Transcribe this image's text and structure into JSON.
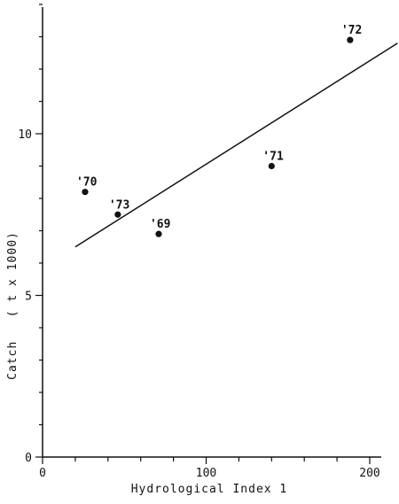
{
  "chart_data": {
    "type": "scatter",
    "title": "",
    "xlabel": "Hydrological Index 1",
    "ylabel": "Catch   ( t x 1000)",
    "xlim": [
      0,
      220
    ],
    "ylim": [
      0,
      14
    ],
    "x_ticks": [
      0,
      100,
      200
    ],
    "y_ticks": [
      0,
      5,
      10
    ],
    "x_tick_labels": [
      "0",
      "100",
      "200"
    ],
    "y_tick_labels": [
      "0",
      "5",
      "10"
    ],
    "grid": false,
    "points": [
      {
        "label": "'69",
        "x": 71,
        "y": 6.9
      },
      {
        "label": "'70",
        "x": 26,
        "y": 8.2
      },
      {
        "label": "'71",
        "x": 140,
        "y": 9.0
      },
      {
        "label": "'72",
        "x": 188,
        "y": 12.9
      },
      {
        "label": "'73",
        "x": 46,
        "y": 7.5
      }
    ],
    "regression_line": {
      "x": [
        20,
        217
      ],
      "y": [
        6.5,
        12.8
      ]
    },
    "colors": {
      "ink": "#111111",
      "background": "#ffffff"
    }
  }
}
